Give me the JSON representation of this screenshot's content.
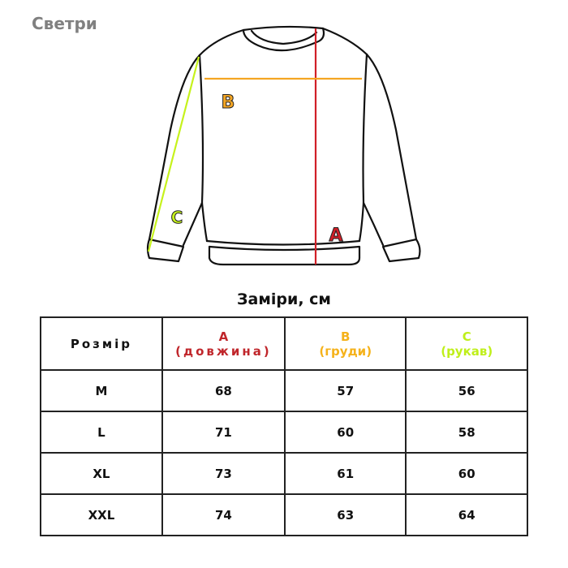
{
  "title": "Светри",
  "diagram": {
    "labels": {
      "a": "A",
      "b": "B",
      "c": "C"
    },
    "colors": {
      "a": "#d11f27",
      "b": "#f5a623",
      "c": "#c6f21c"
    }
  },
  "caption": "Заміри, см",
  "table": {
    "headers": [
      {
        "label": "Розмір",
        "sub": ""
      },
      {
        "label": "A",
        "sub": "(довжина)"
      },
      {
        "label": "B",
        "sub": "(груди)"
      },
      {
        "label": "C",
        "sub": "(рукав)"
      }
    ],
    "rows": [
      [
        "M",
        "68",
        "57",
        "56"
      ],
      [
        "L",
        "71",
        "60",
        "58"
      ],
      [
        "XL",
        "73",
        "61",
        "60"
      ],
      [
        "XXL",
        "74",
        "63",
        "64"
      ]
    ]
  }
}
